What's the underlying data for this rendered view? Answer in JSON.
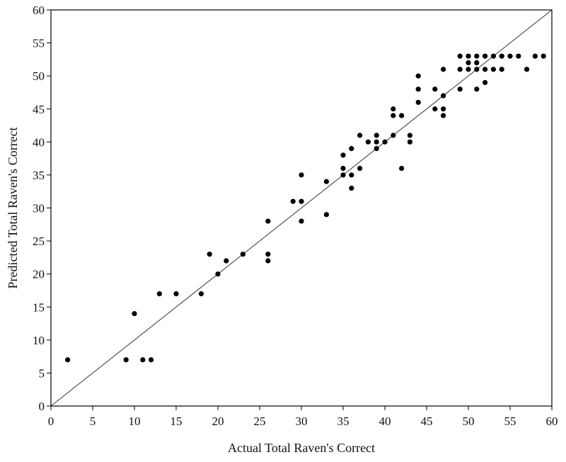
{
  "chart_data": {
    "type": "scatter",
    "title": "",
    "xlabel": "Actual Total Raven's Correct",
    "ylabel": "Predicted Total Raven's Correct",
    "xlim": [
      0,
      60
    ],
    "ylim": [
      0,
      60
    ],
    "xticks": [
      0,
      5,
      10,
      15,
      20,
      25,
      30,
      35,
      40,
      45,
      50,
      55,
      60
    ],
    "yticks": [
      0,
      5,
      10,
      15,
      20,
      25,
      30,
      35,
      40,
      45,
      50,
      55,
      60
    ],
    "grid": false,
    "legend": "none",
    "reference_line": {
      "from": [
        0,
        0
      ],
      "to": [
        60,
        60
      ],
      "label": "identity line y = x"
    },
    "colors": {
      "marker": "#000000",
      "line": "#333333",
      "frame": "#000000"
    },
    "series": [
      {
        "points": [
          [
            2,
            7
          ],
          [
            9,
            7
          ],
          [
            11,
            7
          ],
          [
            12,
            7
          ],
          [
            10,
            14
          ],
          [
            13,
            17
          ],
          [
            15,
            17
          ],
          [
            18,
            17
          ],
          [
            19,
            23
          ],
          [
            20,
            20
          ],
          [
            21,
            22
          ],
          [
            23,
            23
          ],
          [
            26,
            28
          ],
          [
            26,
            23
          ],
          [
            26,
            22
          ],
          [
            29,
            31
          ],
          [
            30,
            35
          ],
          [
            30,
            31
          ],
          [
            30,
            28
          ],
          [
            33,
            34
          ],
          [
            33,
            29
          ],
          [
            35,
            38
          ],
          [
            35,
            36
          ],
          [
            35,
            35
          ],
          [
            36,
            39
          ],
          [
            36,
            35
          ],
          [
            36,
            33
          ],
          [
            37,
            41
          ],
          [
            37,
            36
          ],
          [
            38,
            40
          ],
          [
            39,
            41
          ],
          [
            39,
            40
          ],
          [
            39,
            39
          ],
          [
            40,
            40
          ],
          [
            41,
            45
          ],
          [
            41,
            44
          ],
          [
            41,
            41
          ],
          [
            42,
            44
          ],
          [
            42,
            36
          ],
          [
            43,
            41
          ],
          [
            43,
            40
          ],
          [
            44,
            50
          ],
          [
            44,
            48
          ],
          [
            44,
            46
          ],
          [
            46,
            48
          ],
          [
            46,
            45
          ],
          [
            47,
            51
          ],
          [
            47,
            47
          ],
          [
            47,
            45
          ],
          [
            47,
            44
          ],
          [
            49,
            53
          ],
          [
            49,
            51
          ],
          [
            49,
            48
          ],
          [
            50,
            53
          ],
          [
            50,
            52
          ],
          [
            50,
            51
          ],
          [
            51,
            53
          ],
          [
            51,
            52
          ],
          [
            51,
            51
          ],
          [
            51,
            48
          ],
          [
            52,
            53
          ],
          [
            52,
            51
          ],
          [
            52,
            49
          ],
          [
            53,
            53
          ],
          [
            53,
            51
          ],
          [
            54,
            53
          ],
          [
            54,
            51
          ],
          [
            55,
            53
          ],
          [
            56,
            53
          ],
          [
            57,
            51
          ],
          [
            58,
            53
          ],
          [
            59,
            53
          ]
        ]
      }
    ]
  }
}
